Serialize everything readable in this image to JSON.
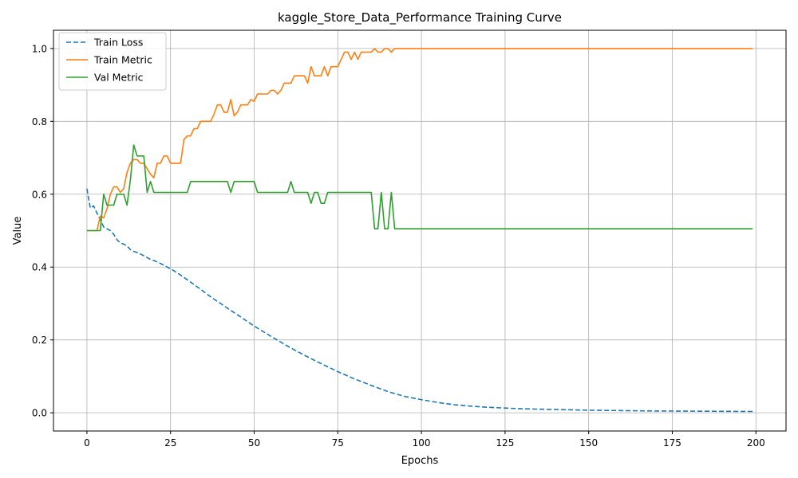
{
  "chart_data": {
    "type": "line",
    "title": "kaggle_Store_Data_Performance Training Curve",
    "xlabel": "Epochs",
    "ylabel": "Value",
    "xlim": [
      -10,
      209
    ],
    "ylim": [
      -0.05,
      1.05
    ],
    "xticks": [
      0,
      25,
      50,
      75,
      100,
      125,
      150,
      175,
      200
    ],
    "yticks": [
      0.0,
      0.2,
      0.4,
      0.6,
      0.8,
      1.0
    ],
    "xtick_labels": [
      "0",
      "25",
      "50",
      "75",
      "100",
      "125",
      "150",
      "175",
      "200"
    ],
    "ytick_labels": [
      "0.0",
      "0.2",
      "0.4",
      "0.6",
      "0.8",
      "1.0"
    ],
    "grid": true,
    "legend_position": "top-left",
    "series": [
      {
        "name": "Train Loss",
        "color": "#1f77b4",
        "style": "dashed",
        "points": [
          [
            0,
            0.615
          ],
          [
            1,
            0.562
          ],
          [
            2,
            0.568
          ],
          [
            3,
            0.548
          ],
          [
            4,
            0.53
          ],
          [
            5,
            0.51
          ],
          [
            6,
            0.505
          ],
          [
            7,
            0.5
          ],
          [
            8,
            0.49
          ],
          [
            9,
            0.475
          ],
          [
            10,
            0.466
          ],
          [
            11,
            0.463
          ],
          [
            12,
            0.458
          ],
          [
            13,
            0.448
          ],
          [
            14,
            0.443
          ],
          [
            15,
            0.44
          ],
          [
            16,
            0.436
          ],
          [
            17,
            0.431
          ],
          [
            18,
            0.426
          ],
          [
            19,
            0.421
          ],
          [
            20,
            0.418
          ],
          [
            22,
            0.41
          ],
          [
            24,
            0.4
          ],
          [
            26,
            0.39
          ],
          [
            28,
            0.378
          ],
          [
            30,
            0.365
          ],
          [
            32,
            0.352
          ],
          [
            34,
            0.339
          ],
          [
            36,
            0.325
          ],
          [
            38,
            0.312
          ],
          [
            40,
            0.3
          ],
          [
            42,
            0.287
          ],
          [
            45,
            0.269
          ],
          [
            50,
            0.238
          ],
          [
            55,
            0.21
          ],
          [
            60,
            0.183
          ],
          [
            65,
            0.158
          ],
          [
            70,
            0.135
          ],
          [
            75,
            0.113
          ],
          [
            80,
            0.093
          ],
          [
            85,
            0.075
          ],
          [
            90,
            0.058
          ],
          [
            95,
            0.045
          ],
          [
            100,
            0.036
          ],
          [
            105,
            0.028
          ],
          [
            110,
            0.022
          ],
          [
            115,
            0.018
          ],
          [
            120,
            0.015
          ],
          [
            125,
            0.013
          ],
          [
            130,
            0.011
          ],
          [
            140,
            0.009
          ],
          [
            150,
            0.007
          ],
          [
            160,
            0.006
          ],
          [
            170,
            0.005
          ],
          [
            180,
            0.0045
          ],
          [
            190,
            0.004
          ],
          [
            199,
            0.0035
          ]
        ]
      },
      {
        "name": "Train Metric",
        "color": "#ff7f0e",
        "style": "solid",
        "points": [
          [
            0,
            0.5
          ],
          [
            1,
            0.5
          ],
          [
            2,
            0.5
          ],
          [
            3,
            0.5
          ],
          [
            4,
            0.54
          ],
          [
            5,
            0.535
          ],
          [
            6,
            0.56
          ],
          [
            7,
            0.6
          ],
          [
            8,
            0.62
          ],
          [
            9,
            0.62
          ],
          [
            10,
            0.605
          ],
          [
            11,
            0.615
          ],
          [
            12,
            0.66
          ],
          [
            13,
            0.685
          ],
          [
            14,
            0.695
          ],
          [
            15,
            0.695
          ],
          [
            16,
            0.685
          ],
          [
            17,
            0.685
          ],
          [
            18,
            0.67
          ],
          [
            19,
            0.655
          ],
          [
            20,
            0.645
          ],
          [
            21,
            0.685
          ],
          [
            22,
            0.685
          ],
          [
            23,
            0.705
          ],
          [
            24,
            0.705
          ],
          [
            25,
            0.685
          ],
          [
            26,
            0.685
          ],
          [
            27,
            0.685
          ],
          [
            28,
            0.685
          ],
          [
            29,
            0.75
          ],
          [
            30,
            0.76
          ],
          [
            31,
            0.76
          ],
          [
            32,
            0.78
          ],
          [
            33,
            0.78
          ],
          [
            34,
            0.8
          ],
          [
            35,
            0.8
          ],
          [
            36,
            0.8
          ],
          [
            37,
            0.8
          ],
          [
            38,
            0.82
          ],
          [
            39,
            0.845
          ],
          [
            40,
            0.845
          ],
          [
            41,
            0.825
          ],
          [
            42,
            0.825
          ],
          [
            43,
            0.86
          ],
          [
            44,
            0.815
          ],
          [
            45,
            0.825
          ],
          [
            46,
            0.845
          ],
          [
            47,
            0.845
          ],
          [
            48,
            0.845
          ],
          [
            49,
            0.86
          ],
          [
            50,
            0.855
          ],
          [
            51,
            0.875
          ],
          [
            52,
            0.875
          ],
          [
            53,
            0.875
          ],
          [
            54,
            0.875
          ],
          [
            55,
            0.885
          ],
          [
            56,
            0.885
          ],
          [
            57,
            0.875
          ],
          [
            58,
            0.885
          ],
          [
            59,
            0.905
          ],
          [
            60,
            0.905
          ],
          [
            61,
            0.905
          ],
          [
            62,
            0.925
          ],
          [
            63,
            0.925
          ],
          [
            64,
            0.925
          ],
          [
            65,
            0.925
          ],
          [
            66,
            0.905
          ],
          [
            67,
            0.95
          ],
          [
            68,
            0.925
          ],
          [
            69,
            0.925
          ],
          [
            70,
            0.925
          ],
          [
            71,
            0.95
          ],
          [
            72,
            0.925
          ],
          [
            73,
            0.95
          ],
          [
            74,
            0.95
          ],
          [
            75,
            0.95
          ],
          [
            76,
            0.97
          ],
          [
            77,
            0.99
          ],
          [
            78,
            0.99
          ],
          [
            79,
            0.97
          ],
          [
            80,
            0.99
          ],
          [
            81,
            0.97
          ],
          [
            82,
            0.99
          ],
          [
            83,
            0.99
          ],
          [
            84,
            0.99
          ],
          [
            85,
            0.99
          ],
          [
            86,
            1.0
          ],
          [
            87,
            0.99
          ],
          [
            88,
            0.99
          ],
          [
            89,
            1.0
          ],
          [
            90,
            1.0
          ],
          [
            91,
            0.99
          ],
          [
            92,
            1.0
          ],
          [
            100,
            1.0
          ],
          [
            150,
            1.0
          ],
          [
            199,
            1.0
          ]
        ]
      },
      {
        "name": "Val Metric",
        "color": "#2ca02c",
        "style": "solid",
        "points": [
          [
            0,
            0.5
          ],
          [
            1,
            0.5
          ],
          [
            2,
            0.5
          ],
          [
            3,
            0.5
          ],
          [
            4,
            0.5
          ],
          [
            5,
            0.6
          ],
          [
            6,
            0.57
          ],
          [
            7,
            0.57
          ],
          [
            8,
            0.57
          ],
          [
            9,
            0.6
          ],
          [
            10,
            0.6
          ],
          [
            11,
            0.6
          ],
          [
            12,
            0.57
          ],
          [
            13,
            0.64
          ],
          [
            14,
            0.735
          ],
          [
            15,
            0.705
          ],
          [
            16,
            0.705
          ],
          [
            17,
            0.705
          ],
          [
            18,
            0.605
          ],
          [
            19,
            0.635
          ],
          [
            20,
            0.605
          ],
          [
            25,
            0.605
          ],
          [
            30,
            0.605
          ],
          [
            31,
            0.635
          ],
          [
            42,
            0.635
          ],
          [
            43,
            0.605
          ],
          [
            44,
            0.635
          ],
          [
            50,
            0.635
          ],
          [
            51,
            0.605
          ],
          [
            60,
            0.605
          ],
          [
            61,
            0.635
          ],
          [
            62,
            0.605
          ],
          [
            66,
            0.605
          ],
          [
            67,
            0.575
          ],
          [
            68,
            0.605
          ],
          [
            69,
            0.605
          ],
          [
            70,
            0.575
          ],
          [
            71,
            0.575
          ],
          [
            72,
            0.605
          ],
          [
            85,
            0.605
          ],
          [
            86,
            0.505
          ],
          [
            87,
            0.505
          ],
          [
            88,
            0.605
          ],
          [
            89,
            0.505
          ],
          [
            90,
            0.505
          ],
          [
            91,
            0.605
          ],
          [
            92,
            0.505
          ],
          [
            100,
            0.505
          ],
          [
            150,
            0.505
          ],
          [
            199,
            0.505
          ]
        ]
      }
    ]
  }
}
